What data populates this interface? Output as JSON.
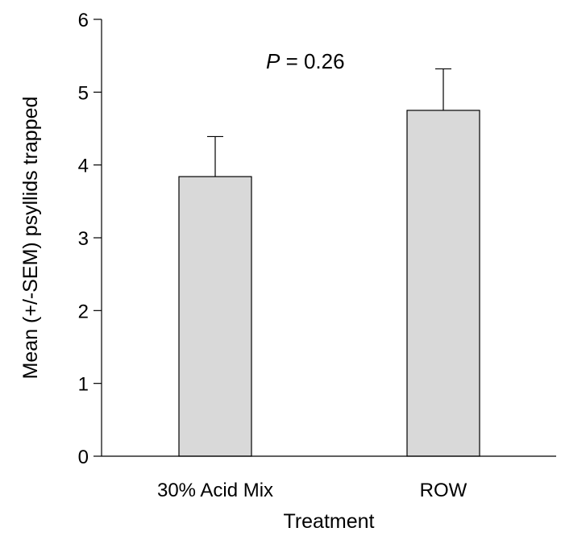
{
  "chart_data": {
    "type": "bar",
    "categories": [
      "30% Acid Mix",
      "ROW"
    ],
    "values": [
      3.84,
      4.75
    ],
    "error_plus": [
      0.55,
      0.57
    ],
    "xlabel": "Treatment",
    "ylabel": "Mean (+/-SEM) psyllids trapped",
    "ylim": [
      0,
      6
    ],
    "yticks": [
      0,
      1,
      2,
      3,
      4,
      5,
      6
    ],
    "annotation": {
      "italic": "P",
      "text": " = 0.26"
    },
    "bar_color": "#d9d9d9",
    "grid": false,
    "legend": "none"
  }
}
